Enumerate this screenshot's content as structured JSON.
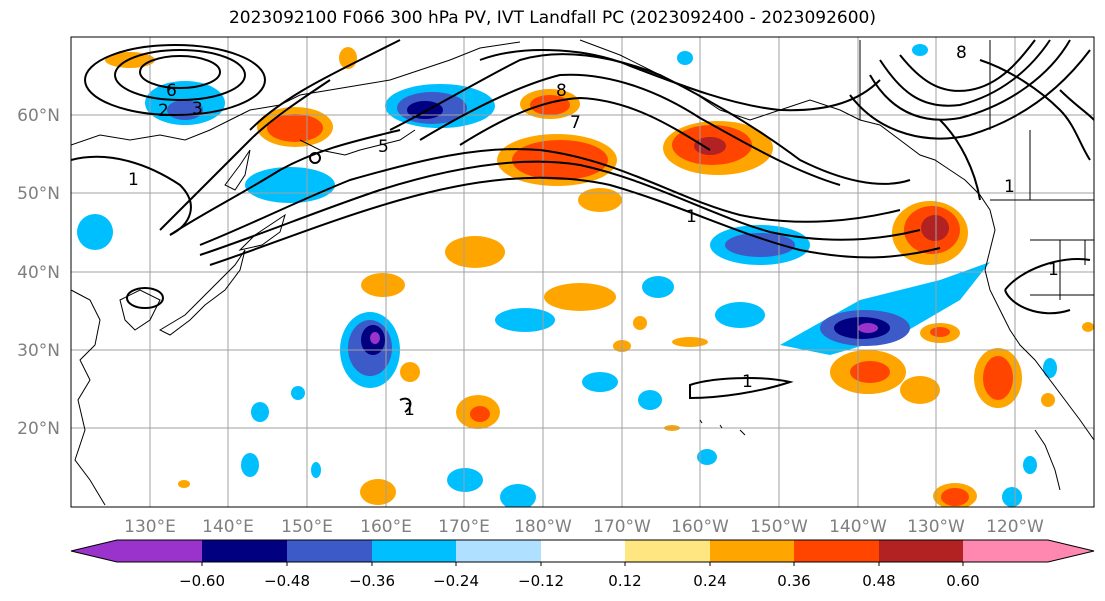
{
  "title": "2023092100 F066 300 hPa PV, IVT Landfall PC (2023092400 - 2023092600)",
  "map": {
    "lon_ticks": [
      "130°E",
      "140°E",
      "150°E",
      "160°E",
      "170°E",
      "180°W",
      "170°W",
      "160°W",
      "150°W",
      "140°W",
      "130°W",
      "120°W"
    ],
    "lat_ticks": [
      "60°N",
      "50°N",
      "40°N",
      "30°N",
      "20°N"
    ],
    "tick_color": "#7f7f7f",
    "contour_labels": [
      {
        "text": "1"
      },
      {
        "text": "2"
      },
      {
        "text": "3"
      },
      {
        "text": "5"
      },
      {
        "text": "6"
      },
      {
        "text": "7"
      },
      {
        "text": "8"
      },
      {
        "text": "1"
      },
      {
        "text": "1"
      },
      {
        "text": "1"
      },
      {
        "text": "1"
      },
      {
        "text": "1"
      },
      {
        "text": "8"
      }
    ]
  },
  "colorbar": {
    "colors": [
      "#9933cc",
      "#000080",
      "#3c5ac8",
      "#00bfff",
      "#b0e0ff",
      "#ffffff",
      "#ffe680",
      "#ffa500",
      "#ff4500",
      "#b22222",
      "#ff88b0"
    ],
    "tick_labels": [
      "−0.60",
      "−0.48",
      "−0.36",
      "−0.24",
      "−0.12",
      "0.12",
      "0.24",
      "0.36",
      "0.48",
      "0.60"
    ]
  }
}
